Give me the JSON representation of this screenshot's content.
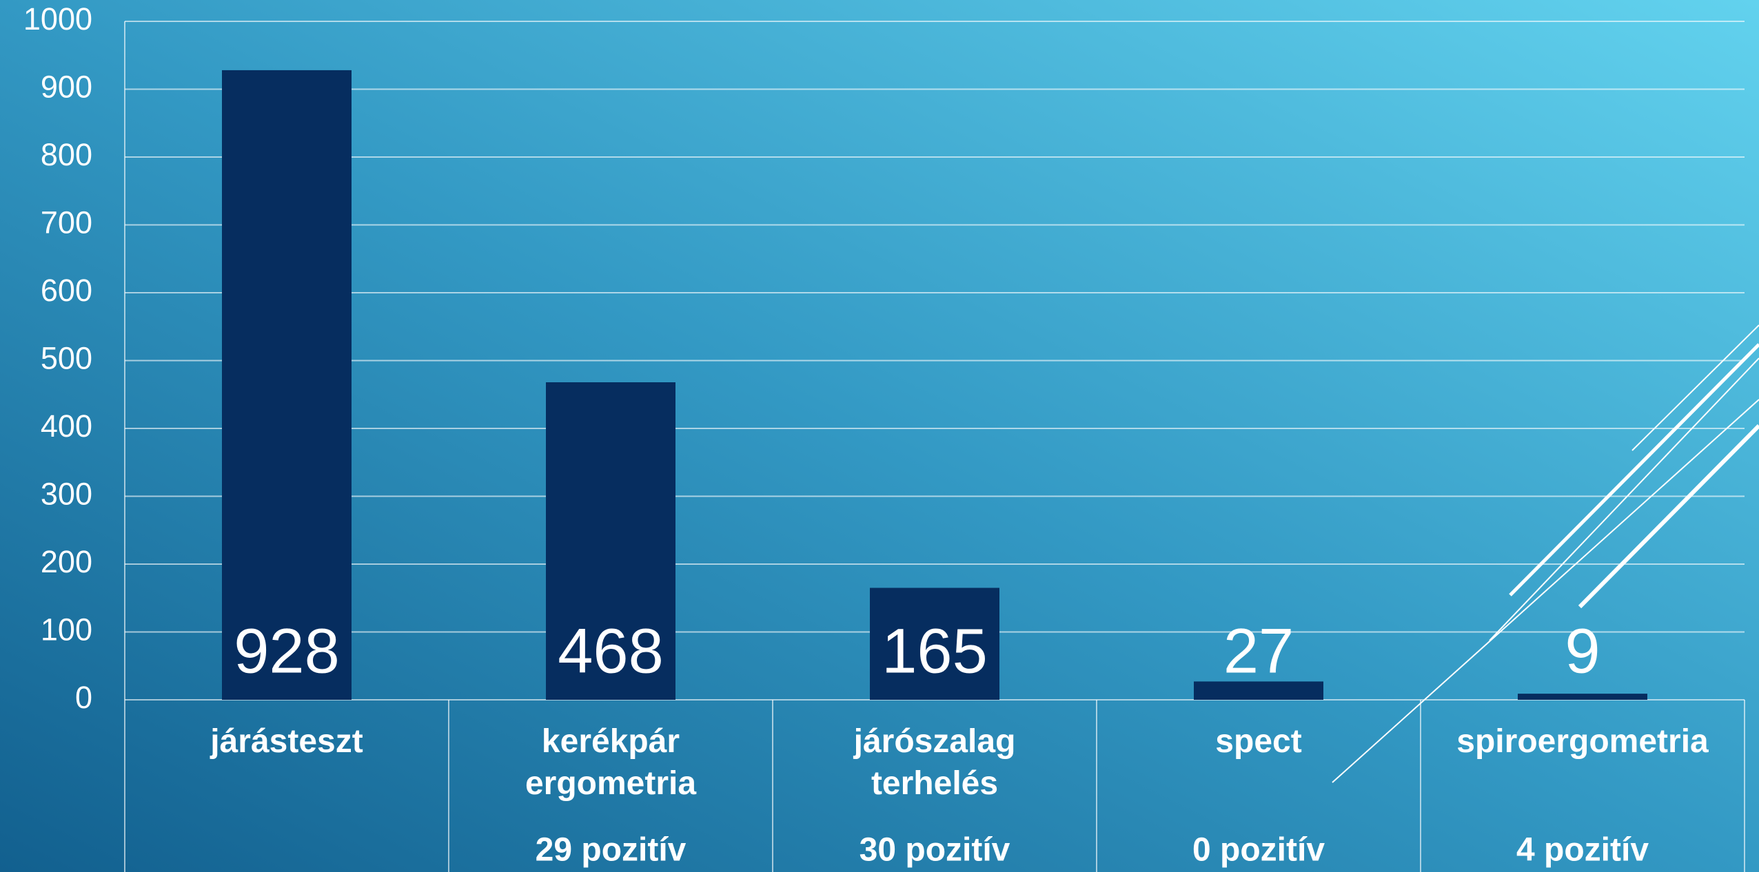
{
  "chart_data": {
    "type": "bar",
    "categories": [
      "járásteszt",
      "kerékpár ergometria",
      "járószalag terhelés",
      "spect",
      "spiroergometria"
    ],
    "notes": [
      null,
      "29 pozitív",
      "30 pozitív",
      "0 pozitív",
      "4 pozitív"
    ],
    "values": [
      928,
      468,
      165,
      27,
      9
    ],
    "color": "#062d5f",
    "ylim": [
      0,
      1000
    ],
    "yticks": [
      0,
      100,
      200,
      300,
      400,
      500,
      600,
      700,
      800,
      900,
      1000
    ],
    "grid": true
  }
}
